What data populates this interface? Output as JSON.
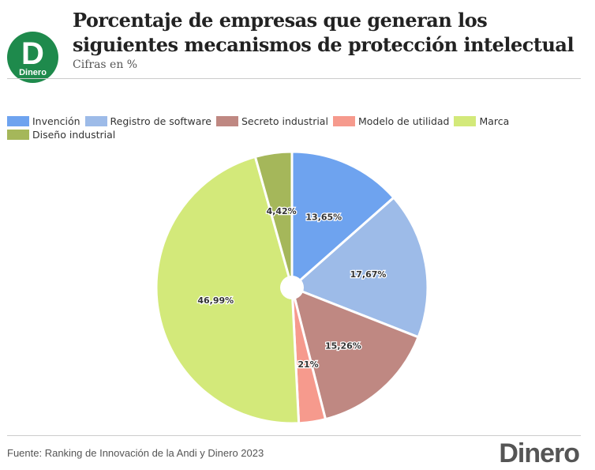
{
  "header": {
    "logo_letter": "D",
    "logo_word": "Dinero",
    "title": "Porcentaje de empresas que generan los siguientes mecanismos de protección intelectual",
    "subtitle": "Cifras en %"
  },
  "footer": {
    "source": "Fuente: Ranking de Innovación de la Andi y Dinero 2023",
    "brand": "Dinero"
  },
  "chart_data": {
    "type": "pie",
    "title": "Porcentaje de empresas que generan los siguientes mecanismos de protección intelectual",
    "legend_position": "top-left",
    "slices": [
      {
        "label": "Invención",
        "value": 13.65,
        "display": "13,65%",
        "color": "#6ea3ef"
      },
      {
        "label": "Registro de software",
        "value": 17.67,
        "display": "17,67%",
        "color": "#9dbbe8"
      },
      {
        "label": "Secreto industrial",
        "value": 15.26,
        "display": "15,26%",
        "color": "#bf8882"
      },
      {
        "label": "Modelo de utilidad",
        "value": 3.21,
        "display": "3,21%",
        "color": "#f69a8d"
      },
      {
        "label": "Marca",
        "value": 46.99,
        "display": "46,99%",
        "color": "#d3e97a"
      },
      {
        "label": "Diseño industrial",
        "value": 4.42,
        "display": "4,42%",
        "color": "#a5b75a"
      }
    ]
  }
}
